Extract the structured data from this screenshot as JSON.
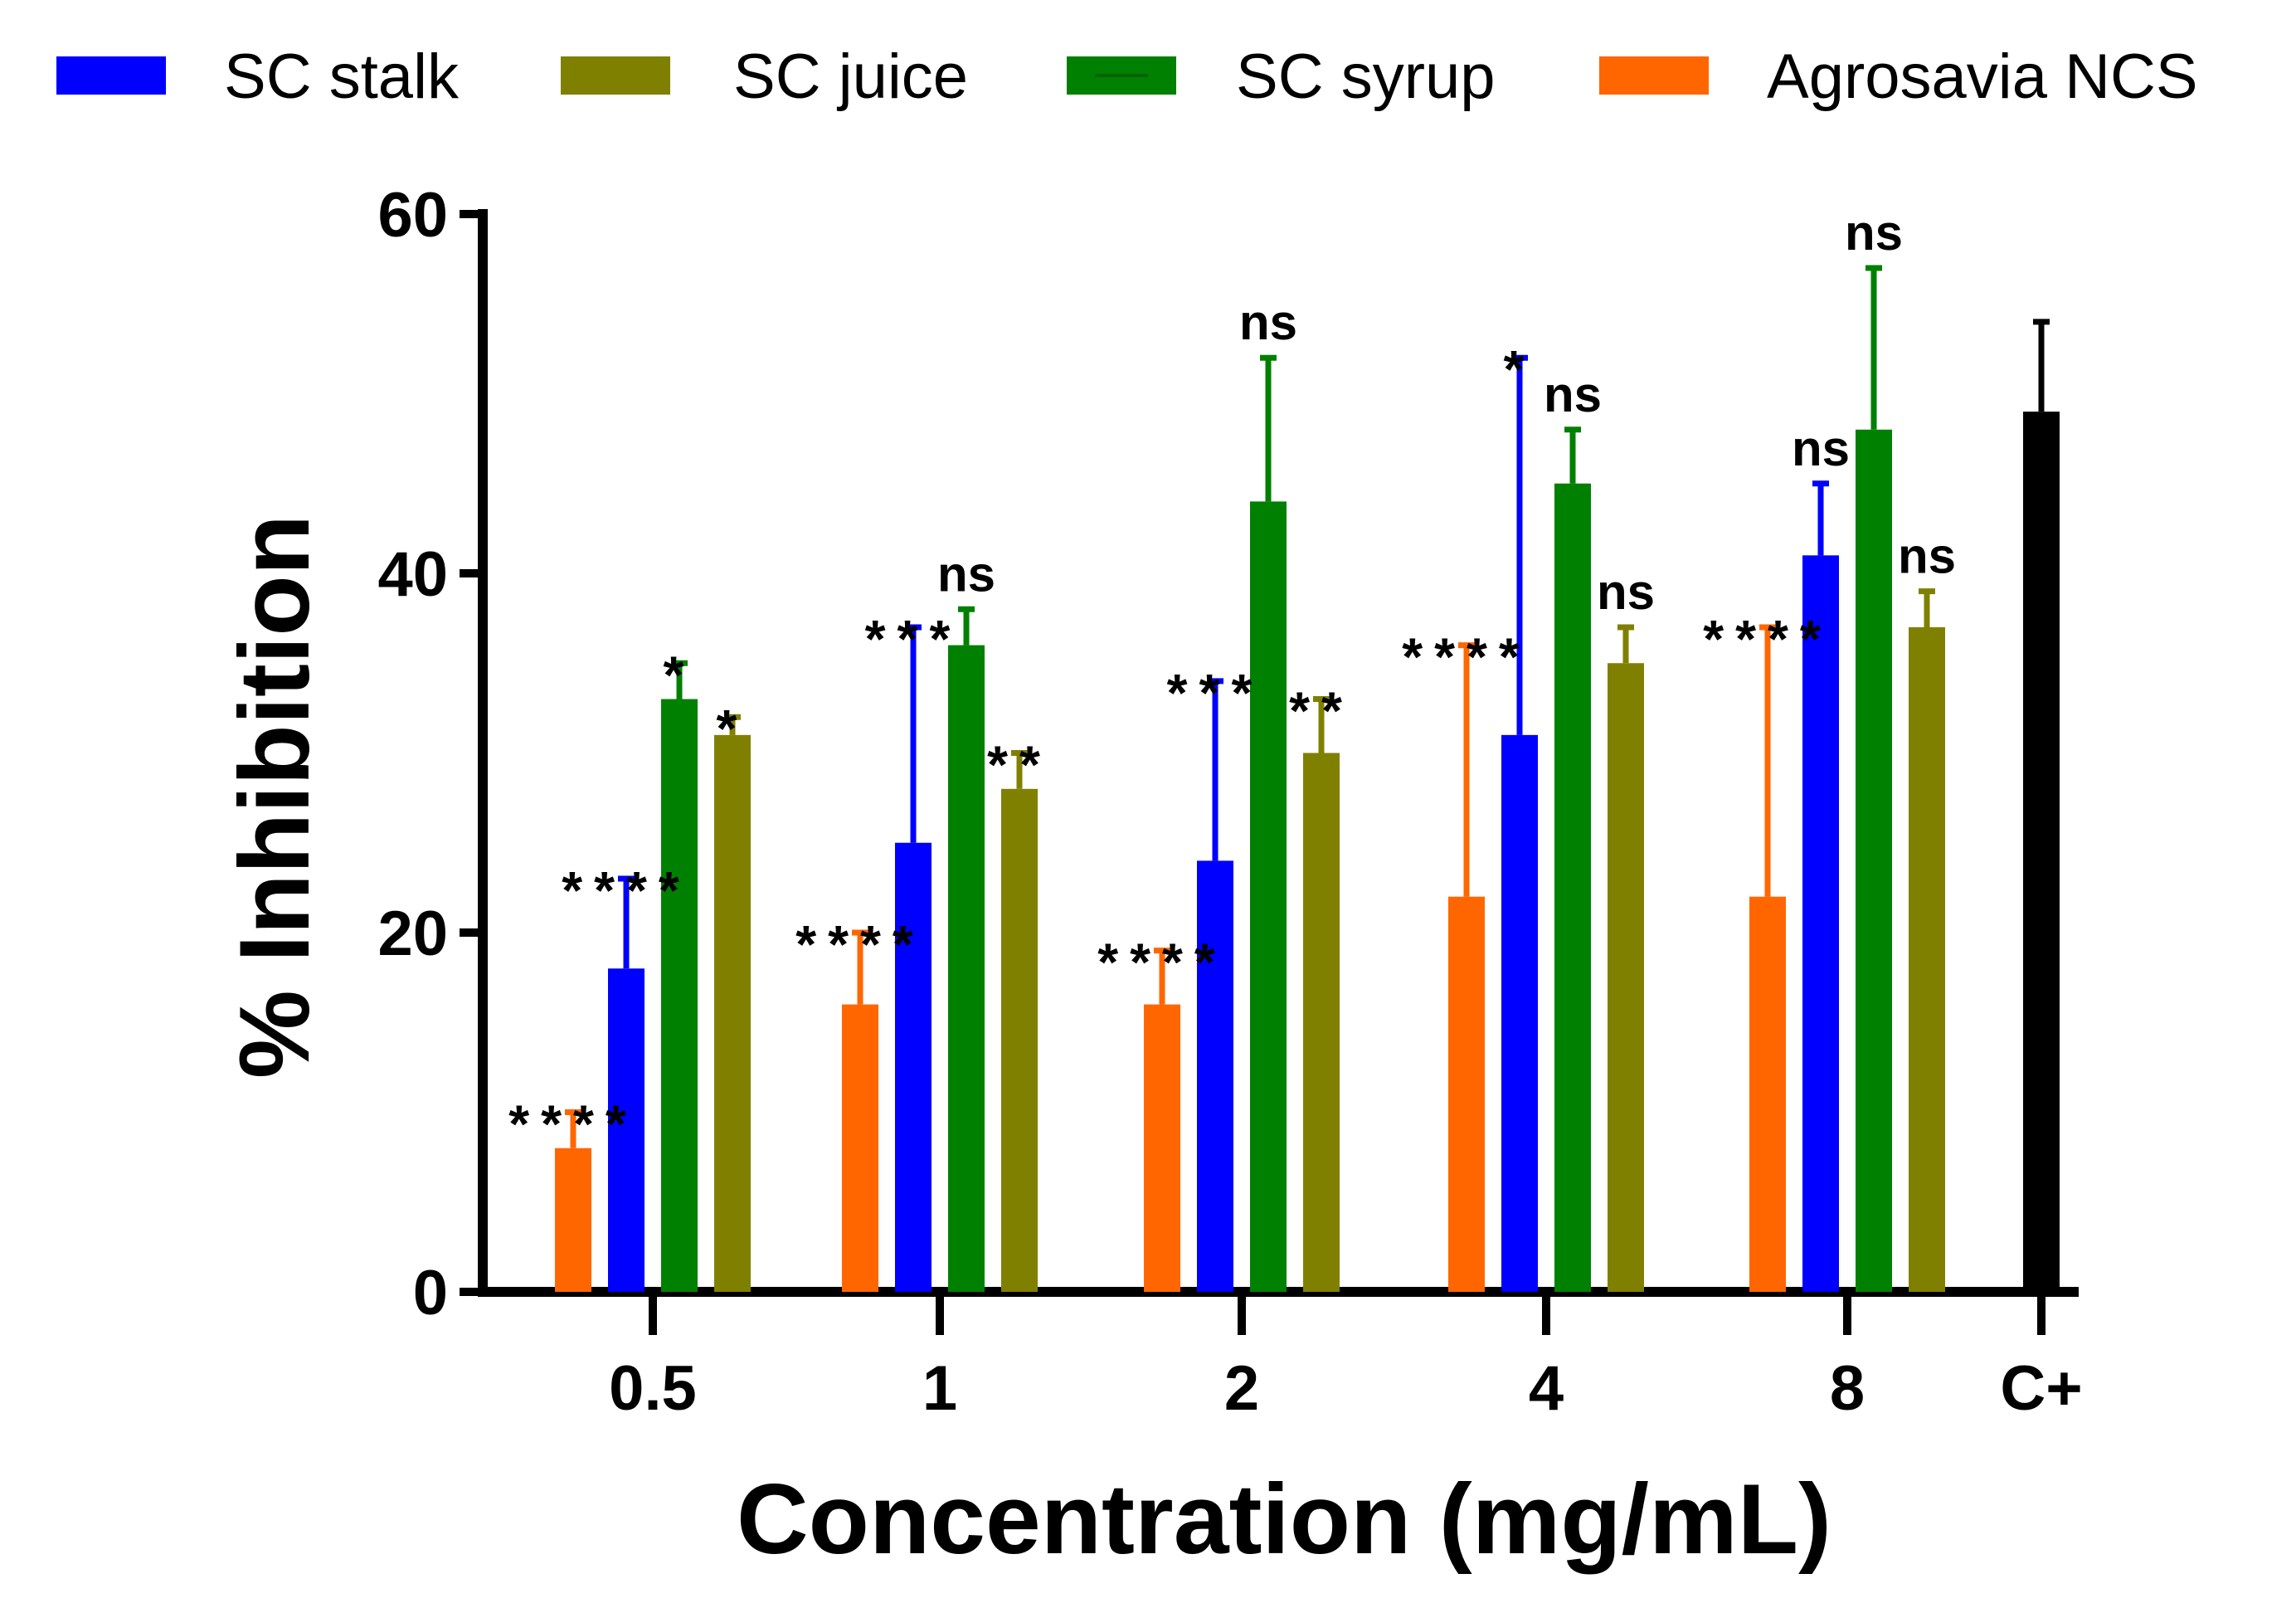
{
  "chart_data": {
    "type": "bar",
    "title": "",
    "xlabel": "Concentration (mg/mL)",
    "ylabel": "% Inhibition",
    "ylim": [
      0,
      60
    ],
    "yticks": [
      "0",
      "20",
      "40",
      "60"
    ],
    "categories": [
      "0.5",
      "1",
      "2",
      "4",
      "8"
    ],
    "series": [
      {
        "name": "Agrosavia NCS",
        "color": "#ff6600",
        "values": [
          8,
          16,
          16,
          22,
          22
        ],
        "errors": [
          2,
          4,
          3,
          14,
          15
        ],
        "significance": [
          "****",
          "****",
          "****",
          "****",
          "****"
        ]
      },
      {
        "name": "SC stalk",
        "color": "#0000ff",
        "values": [
          18,
          25,
          24,
          31,
          41
        ],
        "errors": [
          5,
          12,
          10,
          21,
          4
        ],
        "significance": [
          "****",
          "***",
          "***",
          "*",
          "ns"
        ]
      },
      {
        "name": "SC syrup",
        "color": "#008000",
        "values": [
          33,
          36,
          44,
          45,
          48
        ],
        "errors": [
          2,
          2,
          8,
          3,
          9
        ],
        "significance": [
          "*",
          "ns",
          "ns",
          "ns",
          "ns"
        ]
      },
      {
        "name": "SC juice",
        "color": "#808000",
        "values": [
          31,
          28,
          30,
          35,
          37
        ],
        "errors": [
          1,
          2,
          3,
          2,
          2
        ],
        "significance": [
          "*",
          "**",
          "**",
          "ns",
          "ns"
        ]
      }
    ],
    "control": {
      "category": "C+",
      "value": 49,
      "error": 5,
      "color": "#000000"
    },
    "legend": {
      "placement": "top",
      "entries": [
        "SC stalk",
        "SC juice",
        "SC syrup",
        "Agrosavia NCS"
      ]
    }
  }
}
